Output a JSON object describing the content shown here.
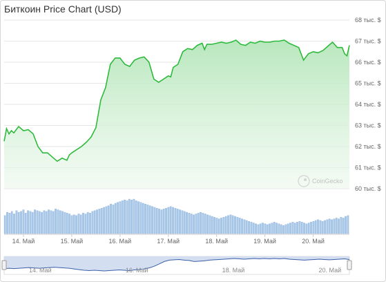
{
  "title": "Биткоин Price Chart (USD)",
  "watermark": "CoinGecko",
  "colors": {
    "line": "#2dba3c",
    "area_top": "#b4e6b9",
    "volume": "#a9c8e8",
    "volume_stroke": "#6f9fd3",
    "navigator": "#cfdaf0",
    "navigator_line": "#3a5fa8"
  },
  "chart_data": {
    "type": "line",
    "title": "Биткоин Price Chart (USD)",
    "ylim": [
      60000,
      68000
    ],
    "yticks": [
      60000,
      61000,
      62000,
      63000,
      64000,
      65000,
      66000,
      67000,
      68000
    ],
    "ytick_labels": [
      "60 тыс. $",
      "61 тыс. $",
      "62 тыс. $",
      "63 тыс. $",
      "64 тыс. $",
      "65 тыс. $",
      "66 тыс. $",
      "67 тыс. $",
      "68 тыс. $"
    ],
    "xlim": [
      13.6,
      20.75
    ],
    "xticks": [
      14,
      15,
      16,
      17,
      18,
      19,
      20
    ],
    "xtick_labels": [
      "14. Май",
      "15. Май",
      "16. Май",
      "17. Май",
      "18. Май",
      "19. Май",
      "20. Май"
    ],
    "navigator_labels": [
      {
        "x": 14.2,
        "text": "14. Май"
      },
      {
        "x": 16.2,
        "text": "16. Май"
      },
      {
        "x": 18.2,
        "text": "18. Май"
      },
      {
        "x": 20.2,
        "text": "20. Май"
      }
    ],
    "series": [
      {
        "x": [
          13.6,
          13.65,
          13.7,
          13.75,
          13.8,
          13.9,
          14.0,
          14.1,
          14.2,
          14.3,
          14.4,
          14.5,
          14.6,
          14.7,
          14.8,
          14.9,
          14.95,
          15.0,
          15.1,
          15.2,
          15.3,
          15.4,
          15.5,
          15.6,
          15.7,
          15.8,
          15.9,
          16.0,
          16.05,
          16.1,
          16.2,
          16.3,
          16.4,
          16.5,
          16.6,
          16.7,
          16.8,
          16.9,
          17.0,
          17.05,
          17.1,
          17.2,
          17.3,
          17.4,
          17.5,
          17.6,
          17.7,
          17.75,
          17.8,
          17.9,
          18.0,
          18.1,
          18.2,
          18.3,
          18.4,
          18.5,
          18.6,
          18.7,
          18.8,
          18.9,
          19.0,
          19.1,
          19.2,
          19.3,
          19.4,
          19.5,
          19.6,
          19.7,
          19.8,
          19.9,
          20.0,
          20.1,
          20.2,
          20.3,
          20.4,
          20.5,
          20.6,
          20.65,
          20.7,
          20.75
        ],
        "y": [
          62250,
          62850,
          62600,
          62750,
          62650,
          62950,
          62750,
          62800,
          62600,
          62000,
          61700,
          61700,
          61500,
          61300,
          61450,
          61350,
          61600,
          61700,
          61850,
          62000,
          62200,
          62450,
          62900,
          64200,
          64800,
          65900,
          66200,
          66200,
          66050,
          65900,
          65800,
          66100,
          66200,
          66250,
          66000,
          65200,
          65050,
          65200,
          65350,
          65300,
          65750,
          65900,
          66500,
          66650,
          66600,
          66800,
          66900,
          66600,
          66850,
          66850,
          66900,
          66950,
          66900,
          66950,
          67050,
          66850,
          66800,
          66950,
          66900,
          67000,
          66950,
          66950,
          67000,
          67000,
          67050,
          66900,
          66800,
          66700,
          66100,
          66400,
          66500,
          66450,
          66550,
          66750,
          66950,
          66700,
          66700,
          66400,
          66300,
          66800
        ]
      }
    ],
    "volume": [
      22,
      26,
      25,
      27,
      24,
      28,
      26,
      27,
      29,
      25,
      28,
      27,
      26,
      29,
      28,
      27,
      26,
      28,
      27,
      29,
      28,
      27,
      30,
      29,
      28,
      27,
      26,
      25,
      24,
      22,
      23,
      22,
      24,
      23,
      25,
      24,
      26,
      25,
      27,
      28,
      29,
      30,
      31,
      32,
      33,
      34,
      36,
      35,
      37,
      38,
      39,
      40,
      41,
      40,
      42,
      41,
      42,
      40,
      39,
      38,
      37,
      36,
      35,
      34,
      33,
      32,
      31,
      30,
      29,
      30,
      31,
      32,
      33,
      32,
      31,
      30,
      29,
      28,
      27,
      26,
      25,
      24,
      23,
      24,
      25,
      26,
      25,
      24,
      23,
      22,
      21,
      20,
      19,
      18,
      19,
      20,
      21,
      22,
      23,
      22,
      21,
      20,
      19,
      18,
      17,
      16,
      15,
      14,
      13,
      12,
      11,
      12,
      13,
      12,
      11,
      12,
      13,
      14,
      13,
      12,
      11,
      10,
      11,
      12,
      13,
      14,
      13,
      14,
      15,
      14,
      13,
      12,
      13,
      14,
      15,
      16,
      17,
      16,
      15,
      16,
      17,
      18,
      17,
      18,
      19,
      18,
      20,
      19,
      21,
      22
    ],
    "navigator_series": [
      31,
      32,
      31,
      32,
      33,
      34,
      33,
      32,
      33,
      34,
      35,
      34,
      33,
      32,
      30,
      28,
      26,
      25,
      26,
      25,
      24,
      25,
      26,
      27,
      26,
      25,
      27,
      28,
      30,
      33,
      38,
      45,
      52,
      56,
      57,
      58,
      56,
      55,
      52,
      53,
      54,
      56,
      57,
      58,
      59,
      60,
      61,
      60,
      59,
      60,
      61,
      60,
      61,
      60,
      61,
      60,
      61,
      59,
      58,
      57,
      56,
      57,
      58,
      59,
      58,
      57,
      58,
      59,
      60,
      58
    ]
  }
}
